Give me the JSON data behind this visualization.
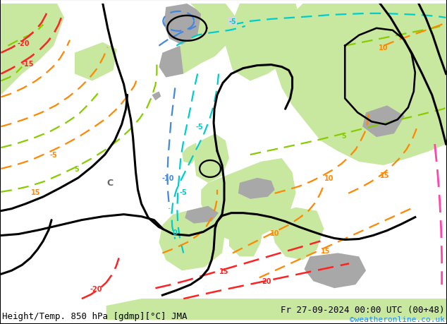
{
  "title_left": "Height/Temp. 850 hPa [gdmp][°C] JMA",
  "title_right": "Fr 27-09-2024 00:00 UTC (00+48)",
  "credit": "©weatheronline.co.uk",
  "bg_ocean": "#d8d8d8",
  "land_green": "#c8e8a0",
  "land_gray": "#a8a8a8",
  "black": "#000000",
  "cyan": "#00cccc",
  "blue": "#4488dd",
  "lime": "#88cc00",
  "orange": "#ff8800",
  "red": "#ff2222",
  "pink": "#ff44aa",
  "lw_black": 2.2,
  "lw_temp": 1.6,
  "fs_label": 7,
  "fs_title": 9
}
